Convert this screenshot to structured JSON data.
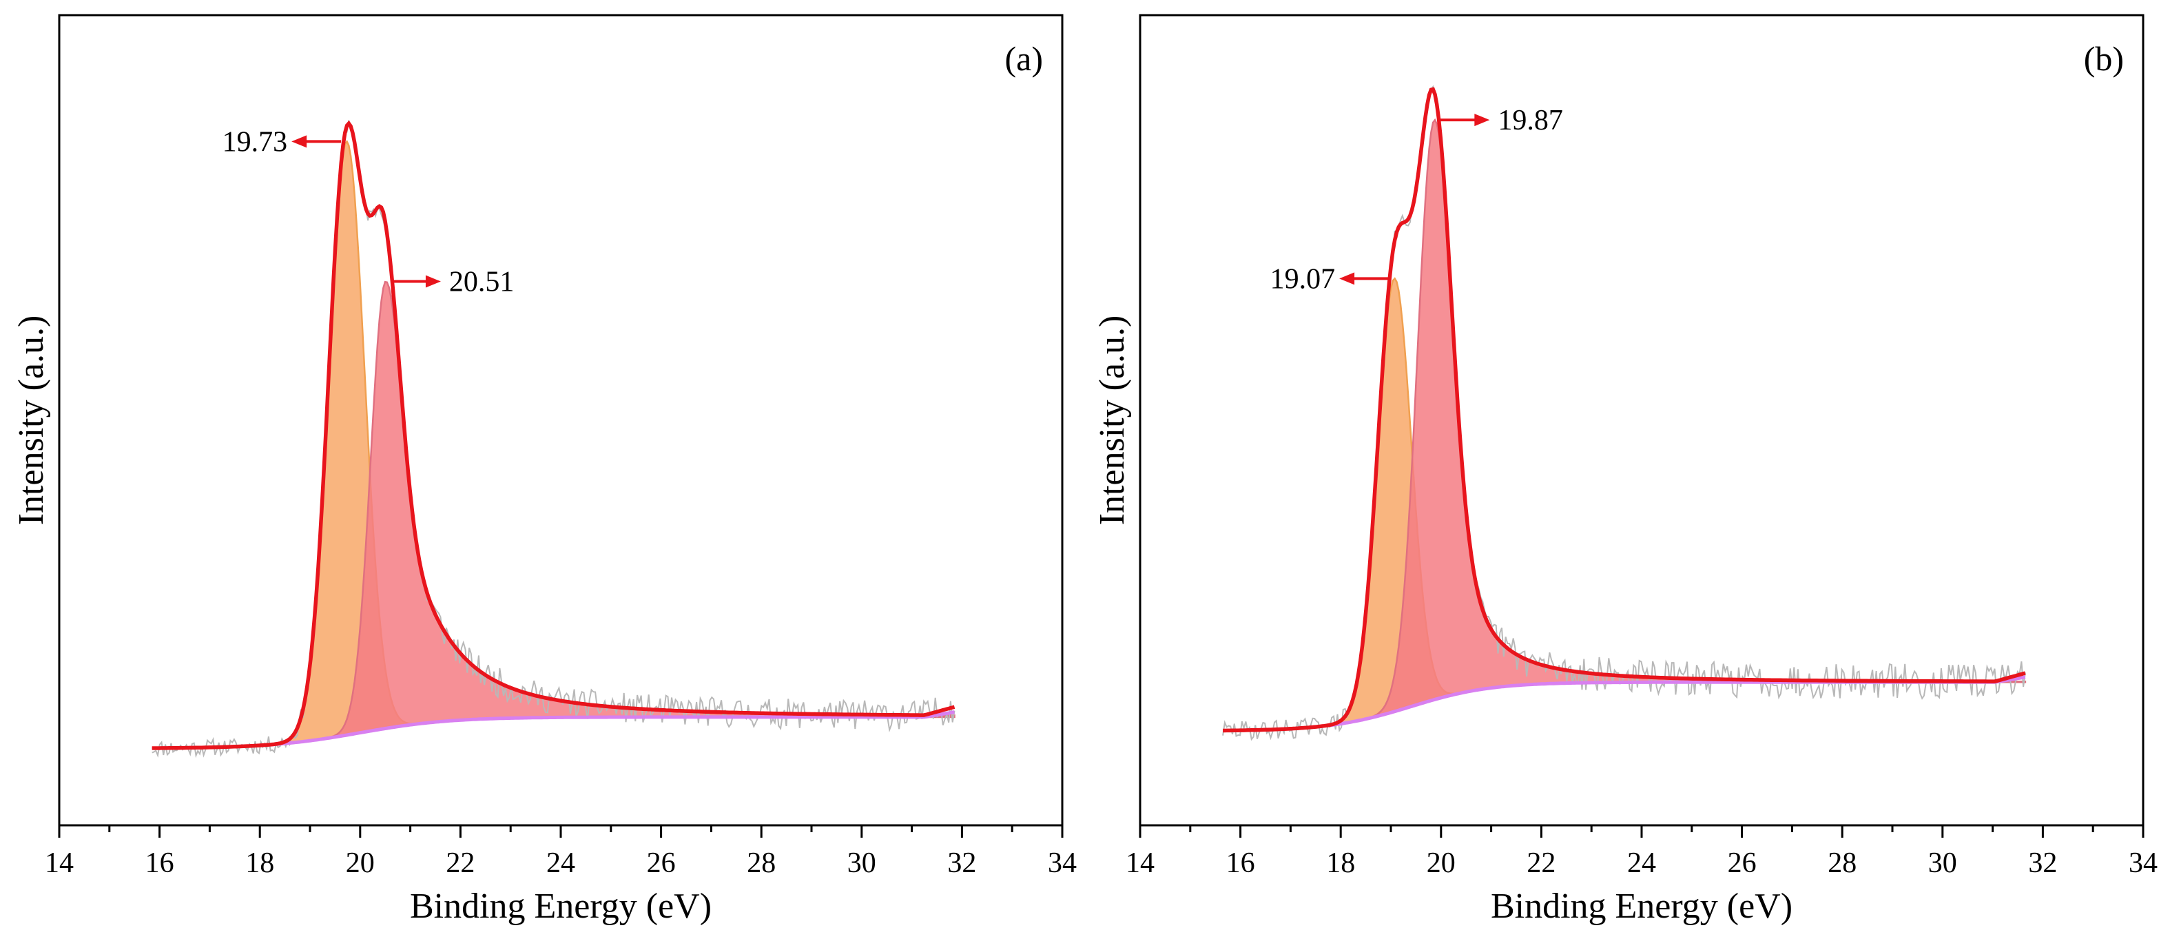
{
  "chart_data": [
    {
      "type": "area",
      "panel_label": "(a)",
      "title": "",
      "xlabel": "Binding Energy (eV)",
      "ylabel": "Intensity (a.u.)",
      "xlim": [
        14,
        34
      ],
      "ylim": [
        0,
        1.16
      ],
      "xticks": [
        14,
        16,
        18,
        20,
        22,
        24,
        26,
        28,
        30,
        32,
        34
      ],
      "x_range": [
        15.85,
        31.85
      ],
      "background": {
        "start": 0.11,
        "end": 0.155,
        "center": 20.0,
        "width": 0.9
      },
      "components": [
        {
          "name": "19.73",
          "center": 19.73,
          "height": 0.85,
          "sigma": 0.36,
          "tail": 0.0,
          "color": "#f8a868",
          "edge": "#f0a050"
        },
        {
          "name": "20.51",
          "center": 20.51,
          "height": 0.64,
          "sigma": 0.3,
          "tail": 1.05,
          "color": "#f47c84",
          "edge": "#e07080"
        }
      ],
      "annotations": [
        {
          "text": "19.73",
          "peak": 19.73,
          "direction": "left"
        },
        {
          "text": "20.51",
          "peak": 20.51,
          "direction": "right"
        }
      ],
      "noise_seed": 11,
      "noise_amp": 0.012,
      "legend": "none"
    },
    {
      "type": "area",
      "panel_label": "(b)",
      "title": "",
      "xlabel": "Binding Energy (eV)",
      "ylabel": "Intensity (a.u.)",
      "xlim": [
        14,
        34
      ],
      "ylim": [
        0,
        1.16
      ],
      "xticks": [
        14,
        16,
        18,
        20,
        22,
        24,
        26,
        28,
        30,
        32,
        34
      ],
      "x_range": [
        15.65,
        31.65
      ],
      "background": {
        "start": 0.135,
        "end": 0.205,
        "center": 19.4,
        "width": 0.8
      },
      "components": [
        {
          "name": "19.07",
          "center": 19.07,
          "height": 0.62,
          "sigma": 0.34,
          "tail": 0.0,
          "color": "#f8a868",
          "edge": "#f0a050"
        },
        {
          "name": "19.87",
          "center": 19.87,
          "height": 0.83,
          "sigma": 0.34,
          "tail": 0.6,
          "color": "#f47c84",
          "edge": "#e07080"
        }
      ],
      "annotations": [
        {
          "text": "19.07",
          "peak": 19.07,
          "direction": "left"
        },
        {
          "text": "19.87",
          "peak": 19.87,
          "direction": "right"
        }
      ],
      "noise_seed": 29,
      "noise_amp": 0.014,
      "legend": "none"
    }
  ],
  "colors": {
    "envelope": "#e8141c",
    "background": "#d880f0",
    "raw_data": "#b8b8b8",
    "arrow": "#e8141c",
    "axis": "#000000"
  }
}
